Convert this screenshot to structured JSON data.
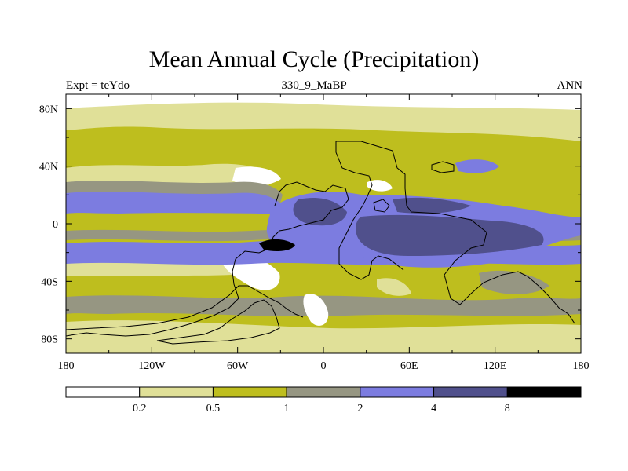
{
  "chart_data": {
    "type": "contour-map",
    "title": "Mean Annual Cycle (Precipitation)",
    "left_label": "Expt = teYdo",
    "center_label": "330_9_MaBP",
    "right_label": "ANN",
    "x_ticks": [
      "180",
      "120W",
      "60W",
      "0",
      "60E",
      "120E",
      "180"
    ],
    "y_ticks": [
      "80N",
      "40N",
      "0",
      "40S",
      "80S"
    ],
    "xlim": [
      -180,
      180
    ],
    "ylim": [
      -90,
      90
    ],
    "levels": [
      "0.2",
      "0.5",
      "1",
      "2",
      "4",
      "8"
    ],
    "colors": [
      "#ffffff",
      "#e0e098",
      "#bebe1e",
      "#969682",
      "#7c7ce0",
      "#50508c",
      "#000000"
    ]
  }
}
